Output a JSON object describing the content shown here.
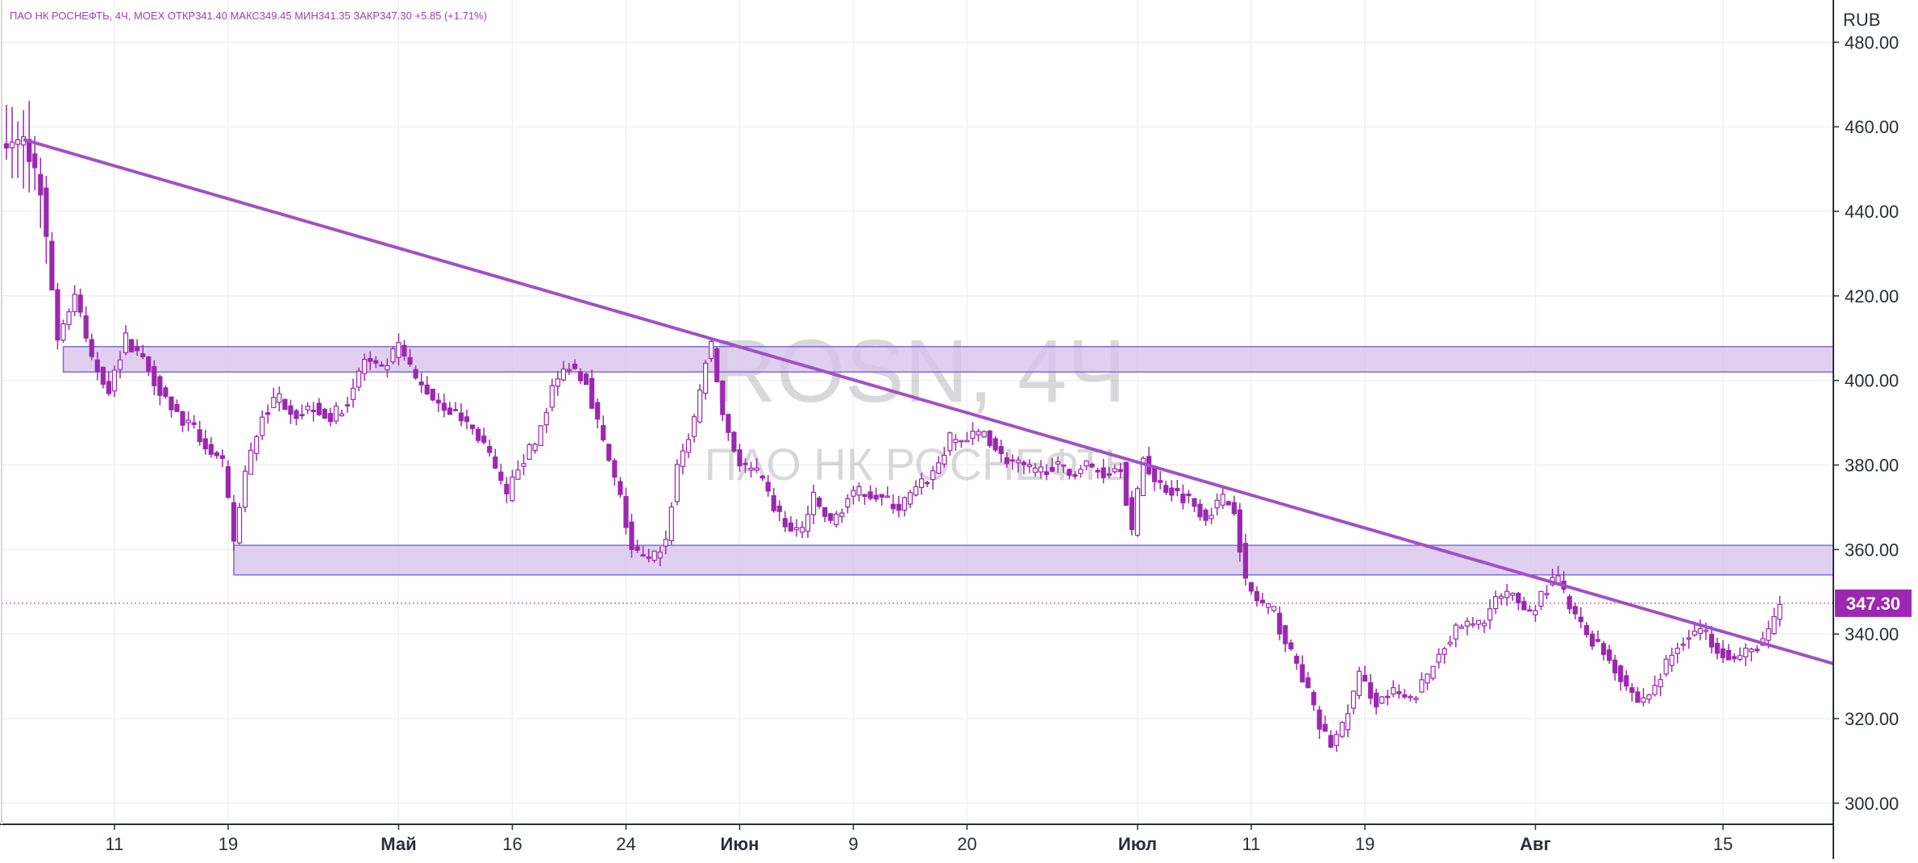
{
  "header": {
    "title": "ПАО НК РОСНЕФТЬ",
    "interval": "4Ч",
    "exchange": "MOEX",
    "open_label": "ОТКР",
    "open_value": "341.40",
    "high_label": "МАКС",
    "high_value": "349.45",
    "low_label": "МИН",
    "low_value": "341.35",
    "close_label": "ЗАКР",
    "close_value": "347.30",
    "change_text": "+5.85 (+1.71%)"
  },
  "watermark": {
    "symbol": "ROSN, 4Ч",
    "company": "ПАО НК РОСНЕФТЬ"
  },
  "price_axis": {
    "currency": "RUB",
    "last_price_label": "347.30"
  },
  "colors": {
    "candles": "#9c27b0",
    "trendline": "#a050c8",
    "zone_fill": "#d9c3ec",
    "zone_border": "#7b6fd6",
    "price_tag": "#9c27b0",
    "grid": "#eef0f3"
  },
  "chart_data": {
    "type": "candlestick",
    "symbol": "ROSN",
    "interval": "4Ч",
    "ylim": [
      295,
      490
    ],
    "grid": true,
    "last_price": 347.3,
    "y_ticks": [
      "480.00",
      "460.00",
      "440.00",
      "420.00",
      "400.00",
      "380.00",
      "360.00",
      "340.00",
      "320.00",
      "300.00"
    ],
    "x_ticks": [
      {
        "label": "11",
        "bar": 19,
        "bold": false
      },
      {
        "label": "19",
        "bar": 39,
        "bold": false
      },
      {
        "label": "Май",
        "bar": 69,
        "bold": true
      },
      {
        "label": "16",
        "bar": 89,
        "bold": false
      },
      {
        "label": "24",
        "bar": 109,
        "bold": false
      },
      {
        "label": "Июн",
        "bar": 129,
        "bold": true
      },
      {
        "label": "9",
        "bar": 149,
        "bold": false
      },
      {
        "label": "20",
        "bar": 169,
        "bold": false
      },
      {
        "label": "Июл",
        "bar": 199,
        "bold": true
      },
      {
        "label": "11",
        "bar": 219,
        "bold": false
      },
      {
        "label": "19",
        "bar": 239,
        "bold": false
      },
      {
        "label": "Авг",
        "bar": 269,
        "bold": true
      },
      {
        "label": "15",
        "bar": 302,
        "bold": false
      }
    ],
    "trendline": {
      "from": {
        "bar": 3,
        "price": 457
      },
      "to": {
        "bar": 325,
        "price": 333
      }
    },
    "zones": [
      {
        "name": "resistance",
        "from_bar": 10,
        "low": 402,
        "high": 408
      },
      {
        "name": "support",
        "from_bar": 40,
        "low": 354,
        "high": 361
      }
    ],
    "anchors": [
      [
        0,
        455
      ],
      [
        3,
        457
      ],
      [
        6,
        445
      ],
      [
        9,
        410
      ],
      [
        12,
        420
      ],
      [
        15,
        405
      ],
      [
        18,
        398
      ],
      [
        21,
        410
      ],
      [
        24,
        405
      ],
      [
        27,
        398
      ],
      [
        30,
        392
      ],
      [
        33,
        388
      ],
      [
        36,
        383
      ],
      [
        38,
        380
      ],
      [
        40,
        362
      ],
      [
        42,
        378
      ],
      [
        45,
        392
      ],
      [
        48,
        396
      ],
      [
        51,
        392
      ],
      [
        54,
        394
      ],
      [
        57,
        391
      ],
      [
        60,
        395
      ],
      [
        63,
        405
      ],
      [
        66,
        402
      ],
      [
        69,
        408
      ],
      [
        72,
        400
      ],
      [
        75,
        396
      ],
      [
        78,
        393
      ],
      [
        81,
        390
      ],
      [
        84,
        385
      ],
      [
        87,
        375
      ],
      [
        88,
        372
      ],
      [
        90,
        380
      ],
      [
        93,
        385
      ],
      [
        96,
        398
      ],
      [
        99,
        404
      ],
      [
        102,
        400
      ],
      [
        105,
        385
      ],
      [
        108,
        372
      ],
      [
        110,
        360
      ],
      [
        113,
        357
      ],
      [
        116,
        362
      ],
      [
        118,
        380
      ],
      [
        121,
        390
      ],
      [
        123,
        405
      ],
      [
        124,
        408
      ],
      [
        126,
        392
      ],
      [
        129,
        380
      ],
      [
        132,
        378
      ],
      [
        135,
        370
      ],
      [
        138,
        364
      ],
      [
        140,
        365
      ],
      [
        142,
        372
      ],
      [
        145,
        366
      ],
      [
        148,
        372
      ],
      [
        151,
        374
      ],
      [
        154,
        372
      ],
      [
        157,
        370
      ],
      [
        160,
        374
      ],
      [
        163,
        378
      ],
      [
        166,
        386
      ],
      [
        169,
        386
      ],
      [
        172,
        388
      ],
      [
        175,
        382
      ],
      [
        178,
        380
      ],
      [
        181,
        378
      ],
      [
        184,
        380
      ],
      [
        187,
        378
      ],
      [
        190,
        380
      ],
      [
        193,
        378
      ],
      [
        196,
        380
      ],
      [
        198,
        364
      ],
      [
        200,
        382
      ],
      [
        202,
        376
      ],
      [
        205,
        374
      ],
      [
        208,
        372
      ],
      [
        211,
        368
      ],
      [
        214,
        372
      ],
      [
        216,
        370
      ],
      [
        218,
        352
      ],
      [
        220,
        348
      ],
      [
        223,
        345
      ],
      [
        225,
        338
      ],
      [
        228,
        330
      ],
      [
        231,
        318
      ],
      [
        233,
        314
      ],
      [
        235,
        318
      ],
      [
        238,
        330
      ],
      [
        241,
        324
      ],
      [
        244,
        326
      ],
      [
        247,
        324
      ],
      [
        250,
        330
      ],
      [
        253,
        338
      ],
      [
        256,
        342
      ],
      [
        259,
        342
      ],
      [
        262,
        348
      ],
      [
        265,
        349
      ],
      [
        268,
        345
      ],
      [
        271,
        351
      ],
      [
        273,
        353
      ],
      [
        275,
        346
      ],
      [
        278,
        340
      ],
      [
        281,
        336
      ],
      [
        284,
        330
      ],
      [
        287,
        324
      ],
      [
        290,
        327
      ],
      [
        292,
        333
      ],
      [
        295,
        339
      ],
      [
        298,
        341
      ],
      [
        301,
        337
      ],
      [
        304,
        334
      ],
      [
        307,
        336
      ],
      [
        310,
        340
      ],
      [
        312,
        347
      ]
    ]
  }
}
